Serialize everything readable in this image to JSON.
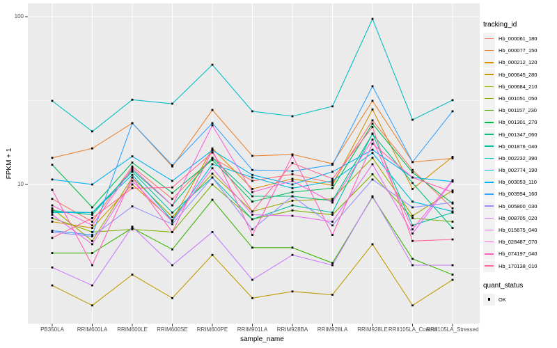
{
  "figure": {
    "ylabel": "FPKM + 1",
    "xlabel": "sample_name",
    "y_ticks": [
      {
        "label": "100",
        "value": 100
      },
      {
        "label": "10",
        "value": 10
      }
    ],
    "legend": {
      "tracking_title": "tracking_id",
      "quant_title": "quant_status",
      "quant_items": [
        {
          "label": "OK",
          "marker": "black-square"
        }
      ]
    },
    "colors": {
      "panel_bg": "#EBEBEB",
      "grid": "#FFFFFF",
      "point": "#000000",
      "tick_text": "#4d4d4d",
      "key_bg": "#F2F2F2"
    }
  },
  "chart_data": {
    "type": "line",
    "title": "",
    "xlabel": "sample_name",
    "ylabel": "FPKM + 1",
    "y_scale": "log10",
    "ylim": [
      1.45,
      120
    ],
    "y_major_gridlines": [
      10,
      100
    ],
    "y_minor_gridlines": [
      3.162,
      31.62
    ],
    "grid": true,
    "legend_position": "right",
    "point_marker": "black-square",
    "quant_status": "OK",
    "categories": [
      "PB350LA",
      "RRIM600LA",
      "RRIM600LE",
      "RRIM600SE",
      "RRIM600PE",
      "RRIM901LA",
      "RRIM928BA",
      "RRIM928LA",
      "RRIM928LE",
      "RRII105LA_Control",
      "RRII105LA_Stressed"
    ],
    "series": [
      {
        "name": "Hb_000061_180",
        "color": "#F8766D",
        "values": [
          8.2,
          6.0,
          12.8,
          8.2,
          14.4,
          10.5,
          11.5,
          10.2,
          24.1,
          12.2,
          7.2
        ]
      },
      {
        "name": "Hb_000077_150",
        "color": "#EA8331",
        "values": [
          14.4,
          16.4,
          23.2,
          12.8,
          27.8,
          14.8,
          15.1,
          13.3,
          31.5,
          13.6,
          14.3
        ]
      },
      {
        "name": "Hb_000212_120",
        "color": "#D89000",
        "values": [
          6.0,
          5.5,
          10.0,
          6.1,
          16.4,
          9.4,
          10.8,
          9.9,
          28.0,
          9.4,
          14.6
        ]
      },
      {
        "name": "Hb_000645_280",
        "color": "#C09B00",
        "values": [
          2.5,
          1.9,
          2.9,
          2.1,
          3.8,
          2.1,
          2.3,
          2.2,
          4.4,
          1.9,
          2.7
        ]
      },
      {
        "name": "Hb_000684_210",
        "color": "#A3A500",
        "values": [
          7.2,
          4.6,
          11.0,
          6.4,
          11.6,
          6.9,
          8.0,
          8.2,
          14.4,
          6.5,
          9.2
        ]
      },
      {
        "name": "Hb_001051_050",
        "color": "#7CAE00",
        "values": [
          6.3,
          5.2,
          5.4,
          5.2,
          10.0,
          6.2,
          7.0,
          6.6,
          11.5,
          6.3,
          6.0
        ]
      },
      {
        "name": "Hb_001157_230",
        "color": "#39B600",
        "values": [
          3.9,
          3.9,
          5.5,
          4.1,
          8.1,
          4.2,
          4.2,
          3.4,
          8.4,
          3.6,
          2.9
        ]
      },
      {
        "name": "Hb_001301_270",
        "color": "#00BB4E",
        "values": [
          13.1,
          7.3,
          13.5,
          8.9,
          14.0,
          7.9,
          9.0,
          9.5,
          23.0,
          11.8,
          7.7
        ]
      },
      {
        "name": "Hb_001347_060",
        "color": "#00BF7D",
        "values": [
          7.0,
          6.6,
          12.2,
          7.5,
          14.4,
          8.5,
          8.5,
          8.0,
          20.0,
          10.2,
          5.5
        ]
      },
      {
        "name": "Hb_001876_040",
        "color": "#00C1A3",
        "values": [
          6.9,
          6.8,
          11.9,
          6.8,
          11.0,
          6.2,
          7.5,
          6.8,
          20.1,
          5.7,
          6.8
        ]
      },
      {
        "name": "Hb_002232_390",
        "color": "#00BFC4",
        "values": [
          31.5,
          20.7,
          32.0,
          30.3,
          51.7,
          27.3,
          25.5,
          29.2,
          97.0,
          24.3,
          31.8
        ]
      },
      {
        "name": "Hb_002774_190",
        "color": "#00BAE0",
        "values": [
          6.8,
          6.8,
          11.4,
          6.1,
          13.2,
          11.0,
          9.5,
          10.5,
          15.4,
          7.9,
          6.9
        ]
      },
      {
        "name": "Hb_003053_110",
        "color": "#00B0F6",
        "values": [
          10.7,
          10.0,
          14.7,
          10.5,
          16.0,
          11.4,
          10.0,
          11.9,
          16.1,
          11.0,
          10.4
        ]
      },
      {
        "name": "Hb_003994_160",
        "color": "#35A2FF",
        "values": [
          5.3,
          5.0,
          23.2,
          13.0,
          23.2,
          12.2,
          12.0,
          13.1,
          38.5,
          13.6,
          27.3
        ]
      },
      {
        "name": "Hb_005800_030",
        "color": "#9590FF",
        "values": [
          5.2,
          4.9,
          7.4,
          5.8,
          11.0,
          5.4,
          8.5,
          5.7,
          10.7,
          7.3,
          7.8
        ]
      },
      {
        "name": "Hb_008705_020",
        "color": "#C77CFF",
        "values": [
          3.2,
          2.5,
          5.6,
          3.3,
          5.2,
          2.7,
          3.8,
          3.3,
          8.5,
          3.3,
          3.3
        ]
      },
      {
        "name": "Hb_015675_040",
        "color": "#E76BF3",
        "values": [
          6.6,
          4.4,
          10.5,
          6.0,
          12.5,
          6.6,
          6.5,
          6.0,
          13.2,
          5.1,
          10.5
        ]
      },
      {
        "name": "Hb_028487_070",
        "color": "#FA62DB",
        "values": [
          7.5,
          5.7,
          12.5,
          7.5,
          22.5,
          9.0,
          10.5,
          7.8,
          18.5,
          5.4,
          10.6
        ]
      },
      {
        "name": "Hb_074197_040",
        "color": "#FF62BC",
        "values": [
          9.3,
          3.3,
          11.0,
          5.2,
          16.0,
          5.0,
          14.9,
          5.0,
          17.5,
          11.0,
          9.0
        ]
      },
      {
        "name": "Hb_170138_010",
        "color": "#FF6A98",
        "values": [
          4.8,
          6.3,
          9.5,
          9.6,
          15.5,
          6.9,
          13.4,
          10.8,
          22.0,
          4.6,
          4.7
        ]
      }
    ]
  }
}
